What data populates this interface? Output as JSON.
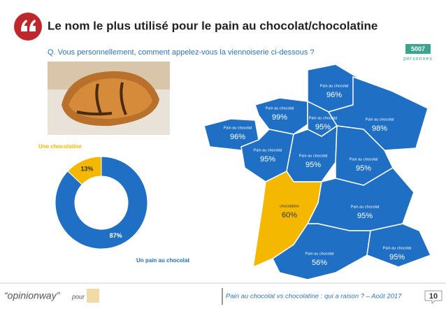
{
  "header": {
    "title": "Le nom le plus utilisé pour le pain au chocolat/chocolatine",
    "question": "Q. Vous personnellement, comment appelez-vous la viennoiserie ci-dessous ?",
    "sample_size": "5007",
    "sample_label": "personnes"
  },
  "chart_data": {
    "type": "donut",
    "categories": [
      "Un pain au chocolat",
      "Une chocolatine"
    ],
    "values": [
      87,
      13
    ],
    "value_labels": [
      "87%",
      "13%"
    ],
    "colors": [
      "#1f6fc5",
      "#f5b800"
    ]
  },
  "map": {
    "regions": [
      {
        "label": "Pain au chocolat",
        "value": "96%",
        "color": "#1f6fc5"
      },
      {
        "label": "Pain au chocolat",
        "value": "99%",
        "color": "#1f6fc5"
      },
      {
        "label": "Pain au chocolat",
        "value": "96%",
        "color": "#1f6fc5"
      },
      {
        "label": "Pain au chocolat",
        "value": "95%",
        "color": "#1f6fc5"
      },
      {
        "label": "Pain au chocolat",
        "value": "98%",
        "color": "#1f6fc5"
      },
      {
        "label": "Pain au chocolat",
        "value": "95%",
        "color": "#1f6fc5"
      },
      {
        "label": "Pain au chocolat",
        "value": "95%",
        "color": "#1f6fc5"
      },
      {
        "label": "Pain au chocolat",
        "value": "95%",
        "color": "#1f6fc5"
      },
      {
        "label": "chocolatine",
        "value": "60%",
        "color": "#f5b800"
      },
      {
        "label": "Pain au chocolat",
        "value": "95%",
        "color": "#1f6fc5"
      },
      {
        "label": "Pain au chocolat",
        "value": "56%",
        "color": "#1f6fc5"
      },
      {
        "label": "Pain au chocolat",
        "value": "95%",
        "color": "#1f6fc5"
      }
    ]
  },
  "footer": {
    "logo": "“opinionway”",
    "for": "pour",
    "caption": "Pain au chocolat vs chocolatine : qui a raison ? – Août 2017",
    "page": "10"
  }
}
